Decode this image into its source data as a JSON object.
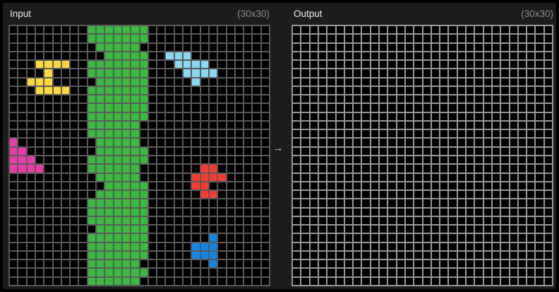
{
  "input_panel": {
    "title": "Input",
    "size_label": "(30x30)"
  },
  "output_panel": {
    "title": "Output",
    "size_label": "(30x30)"
  },
  "arrow": {
    "glyph": "→"
  },
  "ui_colors": {
    "frame_border": "#000000",
    "panel_bg": "#1c1c1c",
    "title_text": "#ededed",
    "size_text": "#8d8d8d",
    "arrow_text": "#c8c8c8",
    "empty_cell": "#000000"
  },
  "grid_line_colors": {
    "input": "#5a5a5a",
    "output": "#989898"
  },
  "palette": {
    ".": "#000000",
    "g": "#3ABA3F",
    "y": "#FFD83D",
    "s": "#87D8F1",
    "m": "#E93CA8",
    "r": "#F93C31",
    "b": "#1086E8"
  },
  "cell_codes": {
    ".": "empty",
    "g": "green",
    "y": "yellow",
    "s": "sky-blue",
    "m": "magenta",
    "r": "red",
    "b": "blue"
  },
  "grids": {
    "input": {
      "rows": 30,
      "cols": 30,
      "cells": [
        ".........ggggggg..............",
        ".........ggggggg..............",
        "..........ggggg...............",
        "...........ggggg..sss.........",
        "...yyyy..ggggggg...ssss.......",
        "....y....ggggggg....ssss......",
        "..yyy.....gggggg.....s........",
        "...yyyy..ggggggg..............",
        ".........ggggggg..............",
        ".........ggggggg..............",
        ".........ggggggg..............",
        ".........gggggg...............",
        ".........gggggg...............",
        "m.........ggggg...............",
        "mm........gggggg..............",
        "mmm......ggggggg..............",
        "mmmm.....gggggg.......rr......",
        "..........ggggg......rrrr.....",
        "...........ggggg.....rr.......",
        "..........gggggg......rr......",
        ".........ggggggg..............",
        ".........ggggggg..............",
        ".........ggggggg..............",
        "..........gggggg..............",
        ".........ggggggg.......b......",
        ".........ggggggg.....bbb......",
        ".........ggggggg.....bbb......",
        ".........gggggg........b......",
        ".........ggggggg..............",
        ".........gggggg..............."
      ]
    },
    "output": {
      "rows": 30,
      "cols": 30,
      "all_empty": true,
      "cells": null
    }
  }
}
